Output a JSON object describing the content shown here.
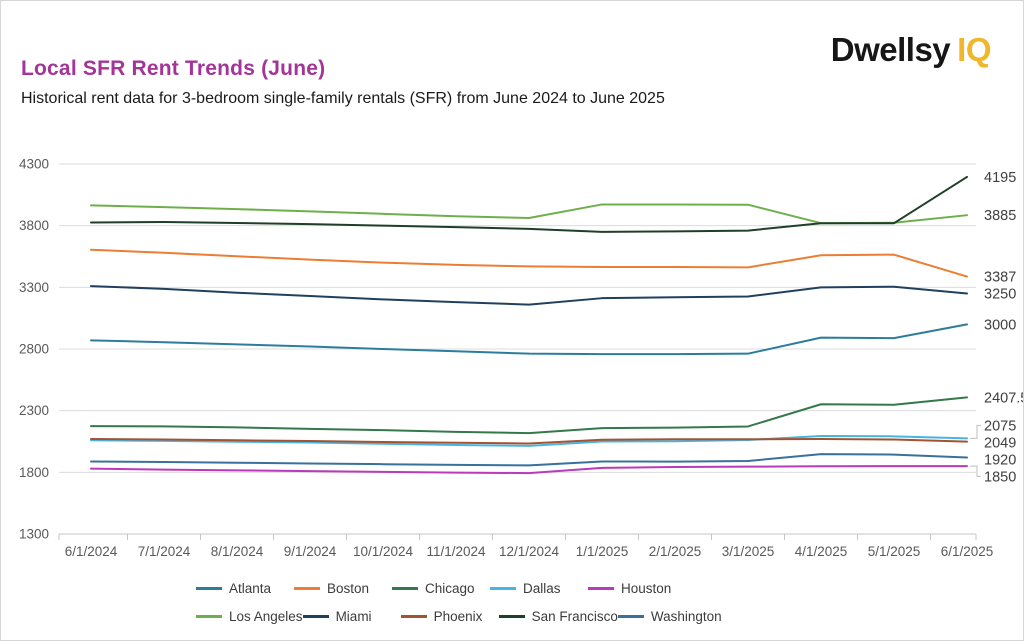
{
  "header": {
    "title": "Local SFR Rent Trends (June)",
    "subtitle": "Historical rent data for 3-bedroom single-family rentals (SFR) from June 2024 to June 2025",
    "title_color": "#A23597",
    "logo": {
      "part1": "Dwellsy",
      "part2": "IQ",
      "gold": "#F0B72B",
      "black": "#161616"
    }
  },
  "chart_data": {
    "type": "line",
    "title": "Local SFR Rent Trends (June)",
    "xlabel": "",
    "ylabel": "",
    "ylim": [
      1300,
      4300
    ],
    "y_ticks": [
      4300,
      3800,
      3300,
      2800,
      2300,
      1800,
      1300
    ],
    "grid": true,
    "legend_position": "bottom",
    "axis_color": "#595959",
    "end_label_color": "#3f3f3f",
    "x_labels": [
      "6/1/2024",
      "7/1/2024",
      "8/1/2024",
      "9/1/2024",
      "10/1/2024",
      "11/1/2024",
      "12/1/2024",
      "1/1/2025",
      "2/1/2025",
      "3/1/2025",
      "4/1/2025",
      "5/1/2025",
      "6/1/2025"
    ],
    "series": [
      {
        "name": "Atlanta",
        "color": "#2C7D9C",
        "end_label": "3000",
        "values": [
          2870,
          2855,
          2838,
          2820,
          2800,
          2782,
          2762,
          2758,
          2758,
          2762,
          2892,
          2888,
          3000
        ]
      },
      {
        "name": "Boston",
        "color": "#EC7D33",
        "end_label": "3387",
        "values": [
          3605,
          3580,
          3552,
          3525,
          3500,
          3482,
          3470,
          3465,
          3465,
          3462,
          3560,
          3565,
          3387
        ]
      },
      {
        "name": "Chicago",
        "color": "#33794A",
        "end_label": "2407.5",
        "values": [
          2175,
          2173,
          2165,
          2152,
          2142,
          2128,
          2118,
          2158,
          2163,
          2172,
          2352,
          2348,
          2407.5
        ]
      },
      {
        "name": "Dallas",
        "color": "#46B5E5",
        "end_label": "2075",
        "values": [
          2060,
          2055,
          2048,
          2042,
          2032,
          2022,
          2015,
          2050,
          2052,
          2062,
          2095,
          2092,
          2075
        ]
      },
      {
        "name": "Houston",
        "color": "#B93ABA",
        "end_label": "1850",
        "values": [
          1830,
          1822,
          1816,
          1810,
          1804,
          1798,
          1794,
          1836,
          1843,
          1846,
          1849,
          1850,
          1850
        ]
      },
      {
        "name": "Los Angeles",
        "color": "#6FAF4B",
        "end_label": "3885",
        "values": [
          3965,
          3950,
          3934,
          3916,
          3896,
          3876,
          3862,
          3972,
          3972,
          3970,
          3820,
          3824,
          3885
        ]
      },
      {
        "name": "Miami",
        "color": "#21405E",
        "end_label": "3250",
        "values": [
          3310,
          3288,
          3256,
          3230,
          3202,
          3180,
          3160,
          3212,
          3220,
          3226,
          3300,
          3305,
          3250
        ]
      },
      {
        "name": "Phoenix",
        "color": "#A5532F",
        "end_label": "2049",
        "values": [
          2070,
          2066,
          2060,
          2054,
          2046,
          2040,
          2034,
          2064,
          2068,
          2068,
          2070,
          2066,
          2049
        ]
      },
      {
        "name": "San Francisco",
        "color": "#1E3F28",
        "end_label": "4195",
        "values": [
          3826,
          3830,
          3822,
          3812,
          3800,
          3788,
          3774,
          3750,
          3754,
          3760,
          3820,
          3820,
          4195
        ]
      },
      {
        "name": "Washington",
        "color": "#38719E",
        "end_label": "1920",
        "values": [
          1888,
          1884,
          1878,
          1872,
          1866,
          1860,
          1856,
          1888,
          1887,
          1892,
          1948,
          1944,
          1920
        ]
      }
    ]
  }
}
